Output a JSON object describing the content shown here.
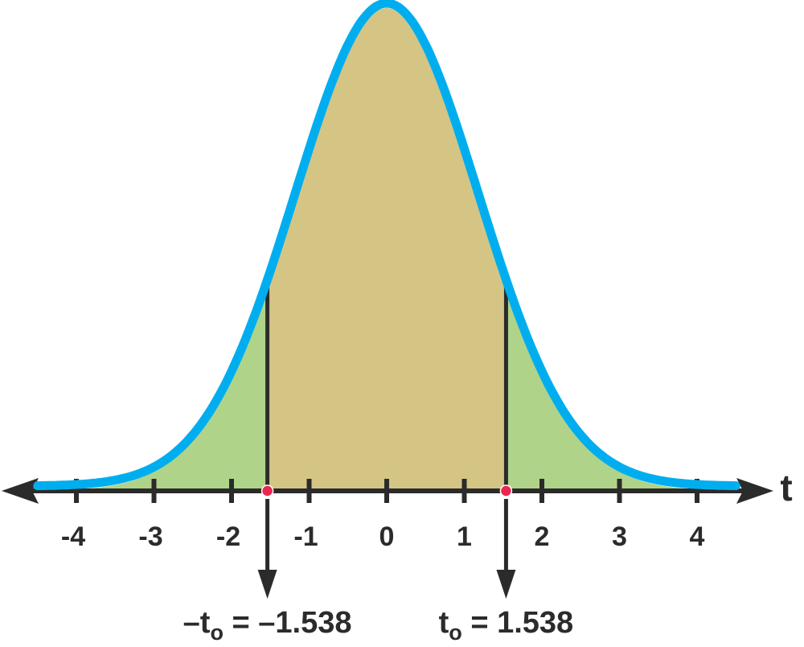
{
  "chart_data": {
    "type": "area",
    "distribution": "t",
    "x_label": "t",
    "xlim": [
      -4.5,
      4.5
    ],
    "x_ticks": [
      -4,
      -3,
      -2,
      -1,
      0,
      1,
      2,
      3,
      4
    ],
    "x_tick_labels": [
      "-4",
      "-3",
      "-2",
      "-1",
      "0",
      "1",
      "2",
      "3",
      "4"
    ],
    "critical_values": [
      -1.538,
      1.538
    ],
    "regions": [
      {
        "from": -4.5,
        "to": -1.538,
        "color": "#afd489"
      },
      {
        "from": -1.538,
        "to": 1.538,
        "color": "#d4c585"
      },
      {
        "from": 1.538,
        "to": 4.5,
        "color": "#afd489"
      }
    ],
    "annotations": [
      {
        "value": -1.538,
        "var": "t",
        "sub": "o",
        "text": " = –1.538",
        "prefix": "–"
      },
      {
        "value": 1.538,
        "var": "t",
        "sub": "o",
        "text": " = 1.538",
        "prefix": ""
      }
    ],
    "grid": false
  },
  "colors": {
    "curve": "#00aeef",
    "tail_fill": "#afd489",
    "center_fill": "#d4c585",
    "axis": "#2b2b2b",
    "marker": "#e8284f"
  }
}
